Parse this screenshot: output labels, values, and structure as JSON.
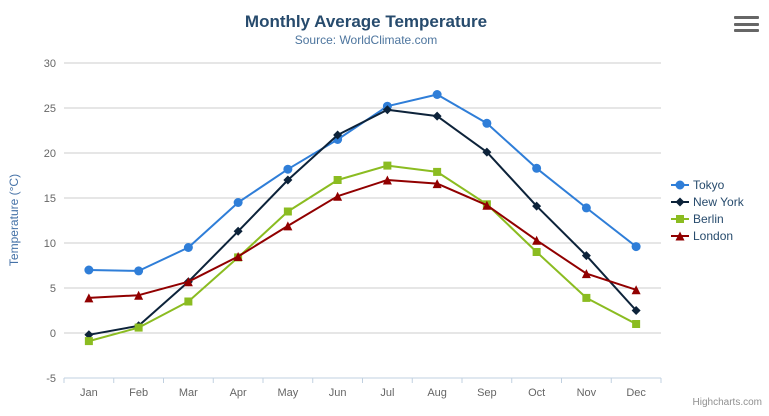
{
  "header": {
    "title": "Monthly Average Temperature",
    "subtitle": "Source: WorldClimate.com"
  },
  "credits": "Highcharts.com",
  "chart_data": {
    "type": "line",
    "title": "Monthly Average Temperature",
    "subtitle": "Source: WorldClimate.com",
    "categories": [
      "Jan",
      "Feb",
      "Mar",
      "Apr",
      "May",
      "Jun",
      "Jul",
      "Aug",
      "Sep",
      "Oct",
      "Nov",
      "Dec"
    ],
    "series": [
      {
        "name": "Tokyo",
        "color": "#2f7ed8",
        "marker": "circle",
        "values": [
          7.0,
          6.9,
          9.5,
          14.5,
          18.2,
          21.5,
          25.2,
          26.5,
          23.3,
          18.3,
          13.9,
          9.6
        ]
      },
      {
        "name": "New York",
        "color": "#0d233a",
        "marker": "diamond",
        "values": [
          -0.2,
          0.8,
          5.7,
          11.3,
          17.0,
          22.0,
          24.8,
          24.1,
          20.1,
          14.1,
          8.6,
          2.5
        ]
      },
      {
        "name": "Berlin",
        "color": "#8bbc21",
        "marker": "square",
        "values": [
          -0.9,
          0.6,
          3.5,
          8.4,
          13.5,
          17.0,
          18.6,
          17.9,
          14.3,
          9.0,
          3.9,
          1.0
        ]
      },
      {
        "name": "London",
        "color": "#910000",
        "marker": "triangle",
        "values": [
          3.9,
          4.2,
          5.7,
          8.5,
          11.9,
          15.2,
          17.0,
          16.6,
          14.2,
          10.3,
          6.6,
          4.8
        ]
      }
    ],
    "xlabel": "",
    "ylabel": "Temperature (°C)",
    "ylim": [
      -5,
      30
    ],
    "ytick_step": 5,
    "grid": true,
    "legend_position": "right-middle"
  },
  "colors": {
    "title": "#274b6d",
    "subtitle": "#4d759e",
    "axis_label": "#666666",
    "axis_title": "#4572a7",
    "grid": "#cccccc",
    "axis_line": "#c0d0e0",
    "legend_text": "#274b6d",
    "credits": "#909090",
    "menu": "#666666"
  }
}
